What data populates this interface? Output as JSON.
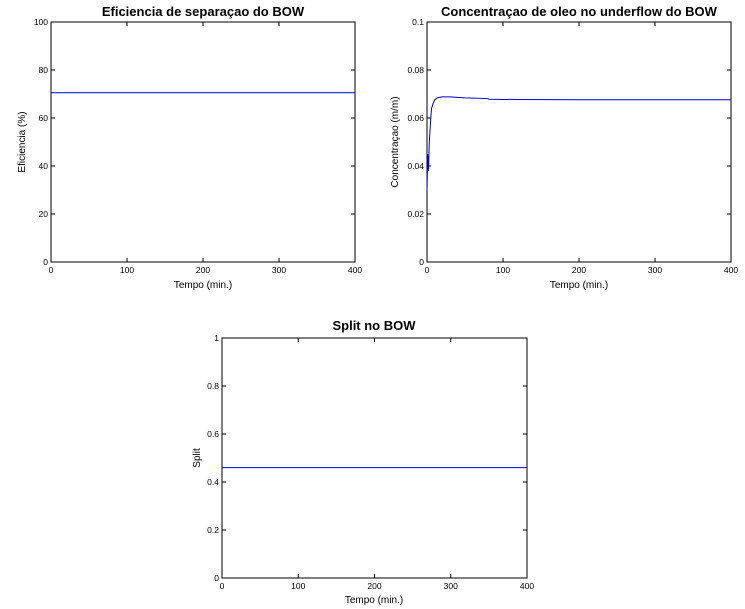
{
  "chart_data": [
    {
      "type": "line",
      "title": "Eficiencia de separaçao do BOW",
      "xlabel": "Tempo (min.)",
      "ylabel": "Eficiencia (%)",
      "xlim": [
        0,
        400
      ],
      "ylim": [
        0,
        100
      ],
      "xticks": [
        "0",
        "100",
        "200",
        "300",
        "400"
      ],
      "yticks": [
        "0",
        "20",
        "40",
        "60",
        "80",
        "100"
      ],
      "grid": false,
      "line_color": "#0000cc",
      "series": [
        {
          "x": [
            0,
            400
          ],
          "y": [
            70.5,
            70.5
          ]
        }
      ]
    },
    {
      "type": "line",
      "title": "Concentraçao de oleo no underflow do BOW",
      "xlabel": "Tempo (min.)",
      "ylabel": "Concentraçao (m/m)",
      "xlim": [
        0,
        400
      ],
      "ylim": [
        0,
        0.1
      ],
      "xticks": [
        "0",
        "100",
        "200",
        "300",
        "400"
      ],
      "yticks": [
        "0",
        "0.02",
        "0.04",
        "0.06",
        "0.08",
        "0.1"
      ],
      "grid": false,
      "line_color": "#0000cc",
      "series": [
        {
          "x": [
            0,
            1,
            2,
            3,
            4,
            5,
            6,
            8,
            10,
            14,
            20,
            30,
            50,
            80,
            81,
            120,
            200,
            300,
            400
          ],
          "y": [
            0.03,
            0.045,
            0.038,
            0.05,
            0.055,
            0.06,
            0.064,
            0.066,
            0.0675,
            0.0685,
            0.0688,
            0.0688,
            0.0684,
            0.0681,
            0.0678,
            0.0677,
            0.0676,
            0.0676,
            0.0676
          ]
        }
      ]
    },
    {
      "type": "line",
      "title": "Split no BOW",
      "xlabel": "Tempo (min.)",
      "ylabel": "Split",
      "xlim": [
        0,
        400
      ],
      "ylim": [
        0,
        1
      ],
      "xticks": [
        "0",
        "100",
        "200",
        "300",
        "400"
      ],
      "yticks": [
        "0",
        "0.2",
        "0.4",
        "0.6",
        "0.8",
        "1"
      ],
      "grid": false,
      "line_color": "#0000cc",
      "series": [
        {
          "x": [
            0,
            400
          ],
          "y": [
            0.46,
            0.46
          ]
        }
      ]
    }
  ]
}
